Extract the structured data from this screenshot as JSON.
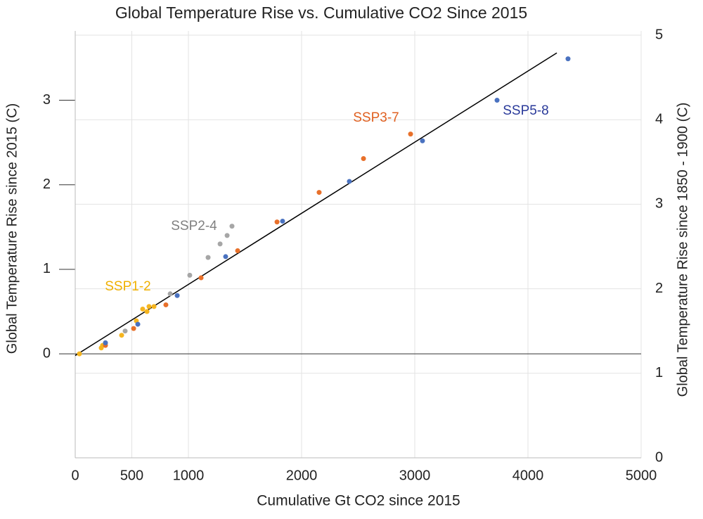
{
  "chart_data": {
    "type": "scatter",
    "title": "Global Temperature Rise vs. Cumulative CO2 Since 2015",
    "x_label": "Cumulative Gt CO2 since 2015",
    "y_label": "Global Temperature Rise since 2015 (C)",
    "y2_label": "Global Temperature Rise since 1850 - 1900 (C)",
    "xlim": [
      0,
      5000
    ],
    "xticks": [
      0,
      500,
      1000,
      2000,
      3000,
      4000,
      5000
    ],
    "ylim": [
      -1.23,
      3.77
    ],
    "yticks": [
      0,
      1,
      2,
      3
    ],
    "y2lim": [
      0,
      5
    ],
    "y2ticks": [
      0,
      1,
      2,
      3,
      4,
      5
    ],
    "grid": true,
    "series": [
      {
        "name": "SSP1-2",
        "color": "#f5b520",
        "x": [
          37,
          230,
          242,
          410,
          540,
          596,
          634,
          652,
          696
        ],
        "values": [
          0.0,
          0.07,
          0.1,
          0.22,
          0.39,
          0.53,
          0.5,
          0.56,
          0.56
        ]
      },
      {
        "name": "SSP2-4",
        "color": "#a6a6a6",
        "x": [
          267,
          441,
          839,
          1012,
          1174,
          1280,
          1342,
          1385
        ],
        "values": [
          0.13,
          0.27,
          0.71,
          0.93,
          1.14,
          1.3,
          1.4,
          1.51
        ]
      },
      {
        "name": "SSP3-7",
        "color": "#e8702a",
        "x": [
          267,
          516,
          801,
          1112,
          1435,
          1783,
          2155,
          2547,
          2963
        ],
        "values": [
          0.1,
          0.3,
          0.58,
          0.9,
          1.22,
          1.56,
          1.91,
          2.31,
          2.6
        ]
      },
      {
        "name": "SSP5-8",
        "color": "#4a72c0",
        "x": [
          267,
          553,
          901,
          1329,
          1832,
          2422,
          3068,
          3727,
          4354
        ],
        "values": [
          0.13,
          0.35,
          0.69,
          1.15,
          1.57,
          2.04,
          2.52,
          3.0,
          3.49
        ]
      }
    ],
    "trend_line": {
      "color": "#000000",
      "x": [
        0,
        4255
      ],
      "y": [
        -0.02,
        3.56
      ]
    }
  }
}
